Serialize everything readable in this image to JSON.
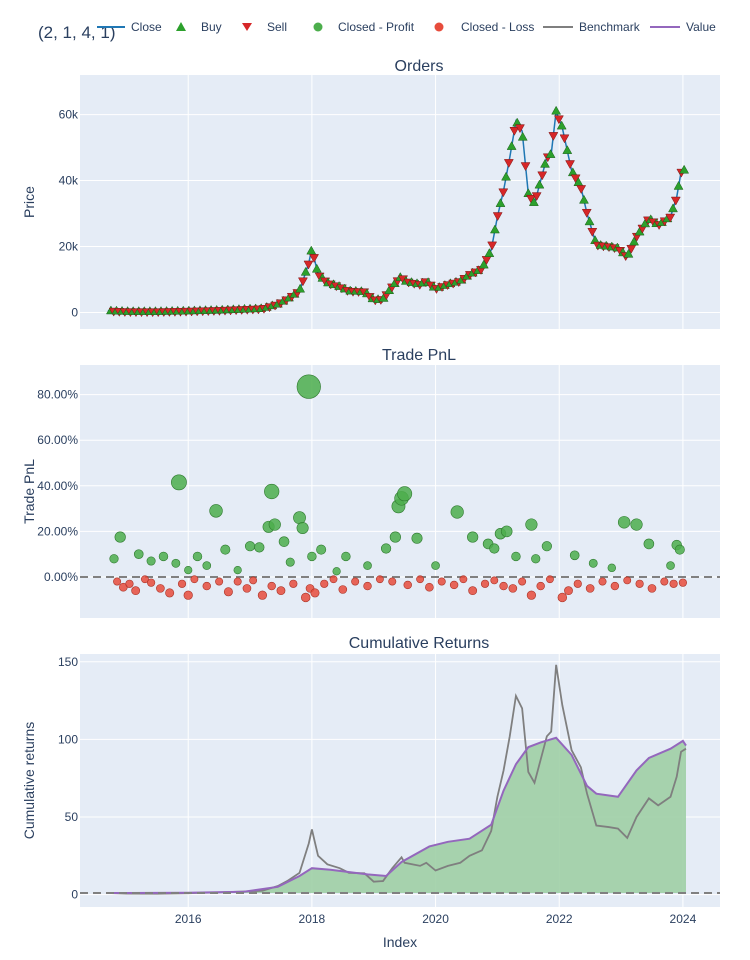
{
  "figure": {
    "overlay_title": "(2, 1, 4, 1)",
    "x_axis_title": "Index",
    "x_ticks": [
      "2016",
      "2018",
      "2020",
      "2022",
      "2024"
    ],
    "colors": {
      "plot_bg": "#e5ecf6",
      "grid": "#ffffff",
      "text": "#2a3f5f",
      "close": "#1f77b4",
      "buy": "#2ca02c",
      "sell": "#d62728",
      "profit": "#4cae4c",
      "loss": "#e74c3c",
      "benchmark": "#7f7f7f",
      "value": "#9467bd",
      "fill": "#9fcfa5"
    }
  },
  "legend": {
    "placement": "top",
    "items": [
      {
        "label": "Close",
        "icon": "line"
      },
      {
        "label": "Buy",
        "icon": "triangle-up"
      },
      {
        "label": "Sell",
        "icon": "triangle-down"
      },
      {
        "label": "Closed - Profit",
        "icon": "circle-green"
      },
      {
        "label": "Closed - Loss",
        "icon": "circle-red"
      },
      {
        "label": "Benchmark",
        "icon": "line-gray"
      },
      {
        "label": "Value",
        "icon": "line-purple"
      }
    ]
  },
  "chart_data": [
    {
      "type": "line",
      "title": "Orders",
      "xlabel": "",
      "ylabel": "Price",
      "xlim": [
        2014.25,
        2024.6
      ],
      "ylim": [
        -5000,
        72000
      ],
      "y_ticks": [
        0,
        20000,
        40000,
        60000
      ],
      "y_tick_labels": [
        "0",
        "20k",
        "40k",
        "60k"
      ],
      "grid": true,
      "series": [
        {
          "name": "Close",
          "type": "line",
          "x": [
            2014.7,
            2015.0,
            2015.5,
            2016.0,
            2016.5,
            2016.9,
            2017.2,
            2017.45,
            2017.6,
            2017.8,
            2017.95,
            2018.0,
            2018.1,
            2018.25,
            2018.45,
            2018.6,
            2018.85,
            2019.0,
            2019.15,
            2019.3,
            2019.45,
            2019.5,
            2019.75,
            2019.85,
            2020.0,
            2020.2,
            2020.4,
            2020.55,
            2020.75,
            2020.9,
            2021.0,
            2021.1,
            2021.2,
            2021.3,
            2021.4,
            2021.5,
            2021.6,
            2021.7,
            2021.8,
            2021.87,
            2021.95,
            2022.05,
            2022.2,
            2022.35,
            2022.45,
            2022.6,
            2022.8,
            2022.95,
            2023.1,
            2023.25,
            2023.45,
            2023.6,
            2023.8,
            2023.9,
            2023.97,
            2024.05
          ],
          "values": [
            500,
            280,
            250,
            430,
            650,
            950,
            1150,
            2500,
            4000,
            6500,
            15000,
            19500,
            11500,
            9000,
            7800,
            6500,
            6300,
            3800,
            4000,
            7900,
            11000,
            9500,
            8500,
            9500,
            7200,
            8500,
            9500,
            11500,
            13200,
            19000,
            29000,
            37000,
            47000,
            58000,
            55000,
            36000,
            33000,
            40000,
            47000,
            48000,
            61000,
            56000,
            43000,
            38000,
            30000,
            20500,
            20000,
            19500,
            16800,
            23000,
            28500,
            26500,
            29000,
            35000,
            42500,
            43500
          ]
        }
      ]
    },
    {
      "type": "scatter",
      "title": "Trade PnL",
      "xlabel": "",
      "ylabel": "Trade PnL",
      "xlim": [
        2014.25,
        2024.6
      ],
      "ylim": [
        -0.18,
        0.93
      ],
      "y_ticks": [
        0,
        0.2,
        0.4,
        0.6,
        0.8
      ],
      "y_tick_labels": [
        "0.00%",
        "20.00%",
        "40.00%",
        "60.00%",
        "80.00%"
      ],
      "baseline": 0,
      "grid": true,
      "series": [
        {
          "name": "Closed - Profit",
          "x": [
            2014.8,
            2014.9,
            2015.2,
            2015.4,
            2015.6,
            2015.8,
            2015.85,
            2016.0,
            2016.15,
            2016.3,
            2016.45,
            2016.6,
            2016.8,
            2017.0,
            2017.15,
            2017.3,
            2017.35,
            2017.4,
            2017.55,
            2017.65,
            2017.8,
            2017.85,
            2017.95,
            2018.0,
            2018.15,
            2018.4,
            2018.55,
            2018.9,
            2019.2,
            2019.35,
            2019.4,
            2019.45,
            2019.5,
            2019.7,
            2020.0,
            2020.35,
            2020.6,
            2020.85,
            2020.95,
            2021.05,
            2021.15,
            2021.3,
            2021.55,
            2021.62,
            2021.8,
            2022.25,
            2022.55,
            2022.85,
            2023.05,
            2023.25,
            2023.45,
            2023.8,
            2023.9,
            2023.95
          ],
          "values": [
            0.08,
            0.175,
            0.1,
            0.07,
            0.09,
            0.06,
            0.415,
            0.03,
            0.09,
            0.05,
            0.29,
            0.12,
            0.03,
            0.135,
            0.13,
            0.22,
            0.375,
            0.23,
            0.155,
            0.065,
            0.26,
            0.215,
            0.835,
            0.09,
            0.12,
            0.025,
            0.09,
            0.05,
            0.125,
            0.175,
            0.31,
            0.345,
            0.365,
            0.17,
            0.05,
            0.285,
            0.175,
            0.145,
            0.125,
            0.19,
            0.2,
            0.09,
            0.23,
            0.08,
            0.135,
            0.095,
            0.06,
            0.04,
            0.24,
            0.23,
            0.145,
            0.05,
            0.14,
            0.12
          ]
        },
        {
          "name": "Closed - Loss",
          "x": [
            2014.85,
            2014.95,
            2015.05,
            2015.15,
            2015.3,
            2015.4,
            2015.55,
            2015.7,
            2015.9,
            2016.0,
            2016.1,
            2016.3,
            2016.5,
            2016.65,
            2016.8,
            2016.95,
            2017.05,
            2017.2,
            2017.35,
            2017.5,
            2017.7,
            2017.9,
            2017.97,
            2018.05,
            2018.2,
            2018.35,
            2018.5,
            2018.7,
            2018.9,
            2019.1,
            2019.3,
            2019.55,
            2019.75,
            2019.9,
            2020.1,
            2020.3,
            2020.45,
            2020.6,
            2020.8,
            2020.95,
            2021.1,
            2021.25,
            2021.4,
            2021.55,
            2021.7,
            2021.85,
            2022.05,
            2022.15,
            2022.3,
            2022.5,
            2022.7,
            2022.9,
            2023.1,
            2023.3,
            2023.5,
            2023.7,
            2023.85,
            2024.0
          ],
          "values": [
            -0.02,
            -0.045,
            -0.03,
            -0.06,
            -0.01,
            -0.025,
            -0.05,
            -0.07,
            -0.03,
            -0.08,
            -0.01,
            -0.04,
            -0.02,
            -0.065,
            -0.02,
            -0.05,
            -0.015,
            -0.08,
            -0.04,
            -0.06,
            -0.03,
            -0.09,
            -0.05,
            -0.07,
            -0.03,
            -0.01,
            -0.055,
            -0.02,
            -0.04,
            -0.01,
            -0.02,
            -0.035,
            -0.01,
            -0.045,
            -0.02,
            -0.035,
            -0.01,
            -0.06,
            -0.03,
            -0.015,
            -0.04,
            -0.05,
            -0.02,
            -0.08,
            -0.04,
            -0.01,
            -0.09,
            -0.06,
            -0.03,
            -0.05,
            -0.02,
            -0.04,
            -0.015,
            -0.03,
            -0.05,
            -0.02,
            -0.03,
            -0.025
          ]
        }
      ]
    },
    {
      "type": "area",
      "title": "Cumulative Returns",
      "xlabel": "Index",
      "ylabel": "Cumulative returns",
      "xlim": [
        2014.25,
        2024.6
      ],
      "ylim": [
        -8,
        155
      ],
      "y_ticks": [
        0,
        50,
        100,
        150
      ],
      "y_tick_labels": [
        "0",
        "50",
        "100",
        "150"
      ],
      "baseline": 1,
      "grid": true,
      "series": [
        {
          "name": "Benchmark",
          "x": [
            2014.7,
            2015.0,
            2015.5,
            2016.0,
            2016.5,
            2016.9,
            2017.2,
            2017.45,
            2017.6,
            2017.8,
            2017.95,
            2018.0,
            2018.1,
            2018.25,
            2018.45,
            2018.6,
            2018.85,
            2019.0,
            2019.15,
            2019.3,
            2019.45,
            2019.5,
            2019.75,
            2019.85,
            2020.0,
            2020.2,
            2020.4,
            2020.55,
            2020.75,
            2020.9,
            2021.0,
            2021.1,
            2021.2,
            2021.3,
            2021.4,
            2021.5,
            2021.6,
            2021.7,
            2021.8,
            2021.87,
            2021.95,
            2022.05,
            2022.2,
            2022.35,
            2022.45,
            2022.6,
            2022.8,
            2022.95,
            2023.1,
            2023.25,
            2023.45,
            2023.6,
            2023.8,
            2023.9,
            2023.97,
            2024.05
          ],
          "values": [
            1.0,
            0.6,
            0.55,
            0.9,
            1.4,
            2.0,
            2.5,
            5.5,
            8.7,
            14,
            33,
            42,
            25,
            19.5,
            17,
            14,
            13.7,
            8.3,
            8.7,
            17,
            24,
            20.5,
            18.5,
            20.5,
            15.5,
            18.5,
            20.5,
            25,
            28.5,
            41,
            63,
            80,
            102,
            128,
            120,
            79,
            72,
            87,
            102,
            105,
            148,
            122,
            93,
            82,
            65,
            44.5,
            43.5,
            42.5,
            36.5,
            50,
            62,
            57.5,
            63,
            76,
            92,
            94
          ]
        },
        {
          "name": "Value",
          "x": [
            2014.7,
            2015.0,
            2016.0,
            2016.9,
            2017.45,
            2017.8,
            2018.0,
            2018.3,
            2018.9,
            2019.2,
            2019.45,
            2019.9,
            2020.2,
            2020.55,
            2020.9,
            2021.1,
            2021.3,
            2021.5,
            2021.7,
            2021.95,
            2022.2,
            2022.45,
            2022.6,
            2022.95,
            2023.25,
            2023.45,
            2023.8,
            2024.0,
            2024.05
          ],
          "values": [
            1.0,
            1.0,
            1.2,
            1.8,
            5,
            12,
            17,
            16,
            13,
            12,
            21,
            31,
            34,
            36,
            45,
            67,
            84,
            95,
            98,
            101,
            90,
            70,
            65,
            63,
            80,
            88,
            94,
            99,
            96
          ]
        }
      ]
    }
  ]
}
